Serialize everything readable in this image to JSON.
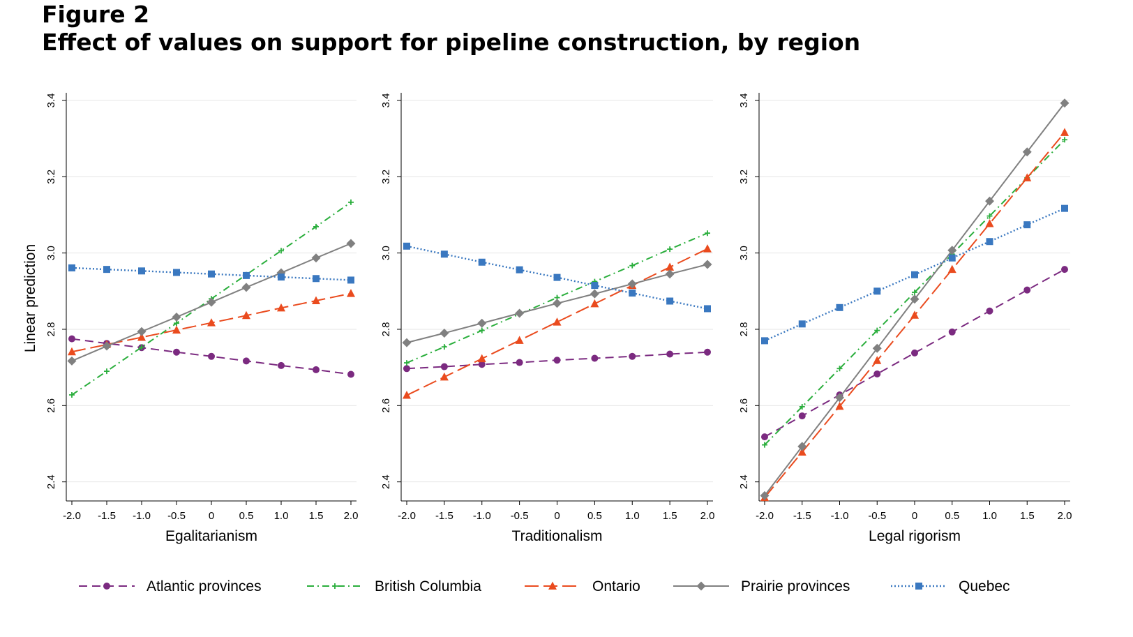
{
  "figure": {
    "label": "Figure 2",
    "title": "Effect of values on support for pipeline construction, by region"
  },
  "colors": {
    "Atlantic provinces": "#7b2a80",
    "British Columbia": "#2aae3c",
    "Ontario": "#ea4b1e",
    "Prairie provinces": "#808080",
    "Quebec": "#3a78c0"
  },
  "legend": [
    {
      "name": "Atlantic provinces",
      "color": "#7b2a80",
      "marker": "circle",
      "dash": "dash"
    },
    {
      "name": "British Columbia",
      "color": "#2aae3c",
      "marker": "plus",
      "dash": "dashdot"
    },
    {
      "name": "Ontario",
      "color": "#ea4b1e",
      "marker": "triangle",
      "dash": "longdash"
    },
    {
      "name": "Prairie provinces",
      "color": "#808080",
      "marker": "diamond",
      "dash": "solid"
    },
    {
      "name": "Quebec",
      "color": "#3a78c0",
      "marker": "square",
      "dash": "dotted"
    }
  ],
  "chart_data": [
    {
      "type": "line",
      "xlabel": "Egalitarianism",
      "ylabel": "Linear prediction",
      "x": [
        -2.0,
        -1.5,
        -1.0,
        -0.5,
        0,
        0.5,
        1.0,
        1.5,
        2.0
      ],
      "x_tick_labels": [
        "-2.0",
        "-1.5",
        "-1.0",
        "-0.5",
        "0",
        "0.5",
        "1.0",
        "1.5",
        "2.0"
      ],
      "y_ticks": [
        2.4,
        2.6,
        2.8,
        3.0,
        3.2,
        3.4
      ],
      "y_tick_labels": [
        "2.4",
        "2.6",
        "2.8",
        "3.0",
        "3.2",
        "3.4"
      ],
      "ylim": [
        2.35,
        3.42
      ],
      "grid": true,
      "legend_position": "bottom",
      "series": [
        {
          "name": "Atlantic provinces",
          "values": [
            2.775,
            2.763,
            2.752,
            2.74,
            2.729,
            2.717,
            2.705,
            2.694,
            2.682
          ]
        },
        {
          "name": "British Columbia",
          "values": [
            2.628,
            2.69,
            2.753,
            2.816,
            2.88,
            2.943,
            3.006,
            3.069,
            3.133
          ]
        },
        {
          "name": "Ontario",
          "values": [
            2.741,
            2.76,
            2.779,
            2.798,
            2.817,
            2.836,
            2.856,
            2.875,
            2.894
          ]
        },
        {
          "name": "Prairie provinces",
          "values": [
            2.717,
            2.756,
            2.794,
            2.832,
            2.871,
            2.91,
            2.948,
            2.987,
            3.025
          ]
        },
        {
          "name": "Quebec",
          "values": [
            2.961,
            2.957,
            2.953,
            2.949,
            2.945,
            2.941,
            2.937,
            2.933,
            2.929
          ]
        }
      ]
    },
    {
      "type": "line",
      "xlabel": "Traditionalism",
      "ylabel": "",
      "x": [
        -2.0,
        -1.5,
        -1.0,
        -0.5,
        0,
        0.5,
        1.0,
        1.5,
        2.0
      ],
      "x_tick_labels": [
        "-2.0",
        "-1.5",
        "-1.0",
        "-0.5",
        "0",
        "0.5",
        "1.0",
        "1.5",
        "2.0"
      ],
      "y_ticks": [
        2.4,
        2.6,
        2.8,
        3.0,
        3.2,
        3.4
      ],
      "y_tick_labels": [
        "2.4",
        "2.6",
        "2.8",
        "3.0",
        "3.2",
        "3.4"
      ],
      "ylim": [
        2.35,
        3.42
      ],
      "grid": true,
      "series": [
        {
          "name": "Atlantic provinces",
          "values": [
            2.697,
            2.702,
            2.708,
            2.713,
            2.719,
            2.724,
            2.729,
            2.735,
            2.74
          ]
        },
        {
          "name": "British Columbia",
          "values": [
            2.712,
            2.754,
            2.797,
            2.84,
            2.883,
            2.925,
            2.967,
            3.01,
            3.052
          ]
        },
        {
          "name": "Ontario",
          "values": [
            2.627,
            2.675,
            2.723,
            2.771,
            2.819,
            2.867,
            2.915,
            2.963,
            3.011
          ]
        },
        {
          "name": "Prairie provinces",
          "values": [
            2.765,
            2.79,
            2.816,
            2.842,
            2.868,
            2.893,
            2.919,
            2.945,
            2.97
          ]
        },
        {
          "name": "Quebec",
          "values": [
            3.018,
            2.997,
            2.976,
            2.956,
            2.936,
            2.915,
            2.895,
            2.874,
            2.854
          ]
        }
      ]
    },
    {
      "type": "line",
      "xlabel": "Legal rigorism",
      "ylabel": "",
      "x": [
        -2.0,
        -1.5,
        -1.0,
        -0.5,
        0,
        0.5,
        1.0,
        1.5,
        2.0
      ],
      "x_tick_labels": [
        "-2.0",
        "-1.5",
        "-1.0",
        "-0.5",
        "0",
        "0.5",
        "1.0",
        "1.5",
        "2.0"
      ],
      "y_ticks": [
        2.4,
        2.6,
        2.8,
        3.0,
        3.2,
        3.4
      ],
      "y_tick_labels": [
        "2.4",
        "2.6",
        "2.8",
        "3.0",
        "3.2",
        "3.4"
      ],
      "ylim": [
        2.35,
        3.42
      ],
      "grid": true,
      "series": [
        {
          "name": "Atlantic provinces",
          "values": [
            2.518,
            2.573,
            2.628,
            2.683,
            2.738,
            2.793,
            2.848,
            2.903,
            2.957
          ]
        },
        {
          "name": "British Columbia",
          "values": [
            2.497,
            2.597,
            2.697,
            2.797,
            2.897,
            2.997,
            3.097,
            3.197,
            3.297
          ]
        },
        {
          "name": "Ontario",
          "values": [
            2.359,
            2.478,
            2.598,
            2.718,
            2.837,
            2.957,
            3.077,
            3.197,
            3.316
          ]
        },
        {
          "name": "Prairie provinces",
          "values": [
            2.364,
            2.493,
            2.621,
            2.75,
            2.879,
            3.007,
            3.136,
            3.265,
            3.393
          ]
        },
        {
          "name": "Quebec",
          "values": [
            2.77,
            2.814,
            2.857,
            2.9,
            2.943,
            2.987,
            3.03,
            3.074,
            3.117
          ]
        }
      ]
    }
  ]
}
